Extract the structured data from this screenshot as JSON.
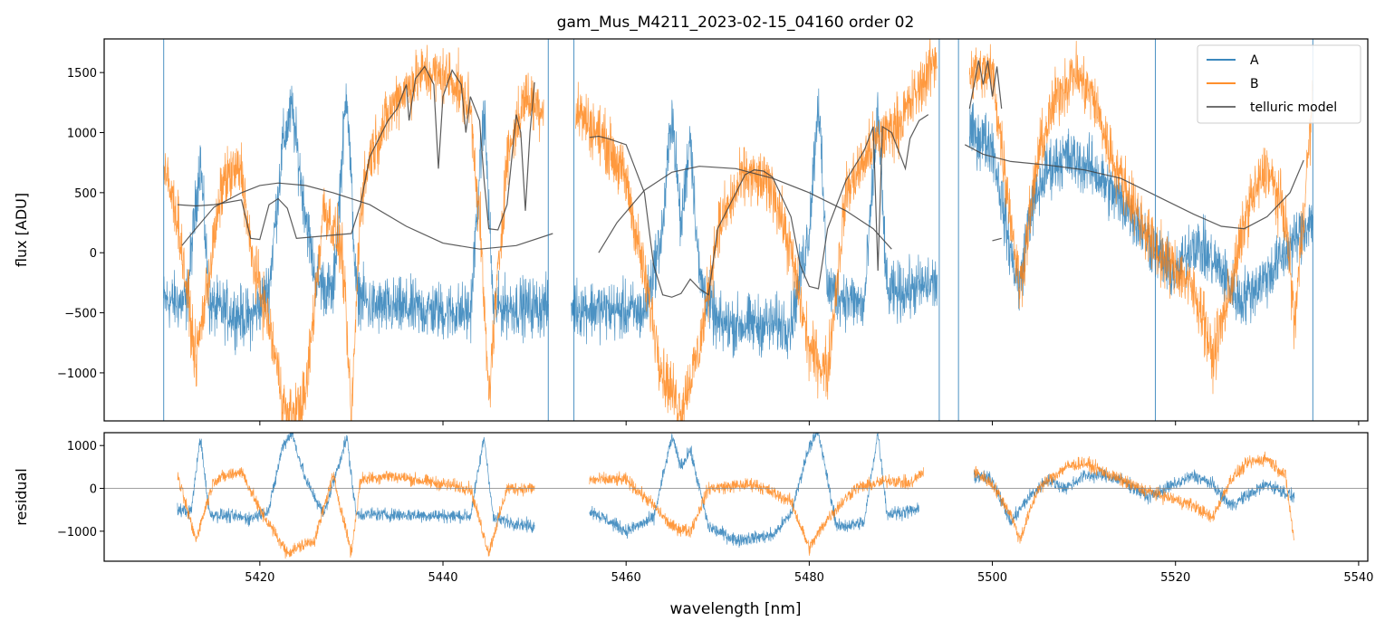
{
  "title": "gam_Mus_M4211_2023-02-15_04160  order 02",
  "colors": {
    "A": "#1f77b4",
    "B": "#ff7f0e",
    "telluric": "#404040",
    "zero": "#808080"
  },
  "chart_data": [
    {
      "panel": "top",
      "type": "line",
      "xlabel": "",
      "ylabel": "flux [ADU]",
      "xlim": [
        5403,
        5541
      ],
      "ylim": [
        -1400,
        1780
      ],
      "yticks": [
        -1000,
        -500,
        0,
        500,
        1000,
        1500
      ],
      "ytick_labels": [
        "−1000",
        "−500",
        "0",
        "500",
        "1000",
        "1500"
      ],
      "legend": {
        "position": "top-right",
        "entries": [
          "A",
          "B",
          "telluric model"
        ]
      },
      "telluric_model_A": {
        "name": "telluric model",
        "segments": [
          [
            [
              5411.5,
              60
            ],
            [
              5413,
              200
            ],
            [
              5415,
              380
            ],
            [
              5418,
              500
            ],
            [
              5420,
              560
            ],
            [
              5422,
              580
            ],
            [
              5425,
              560
            ],
            [
              5428,
              500
            ],
            [
              5432,
              400
            ],
            [
              5436,
              220
            ],
            [
              5440,
              80
            ],
            [
              5444,
              30
            ],
            [
              5448,
              60
            ],
            [
              5452,
              160
            ]
          ],
          [
            [
              5457,
              0
            ],
            [
              5459,
              250
            ],
            [
              5462,
              520
            ],
            [
              5465,
              670
            ],
            [
              5468,
              720
            ],
            [
              5472,
              700
            ],
            [
              5476,
              620
            ],
            [
              5480,
              500
            ],
            [
              5484,
              350
            ],
            [
              5487,
              200
            ],
            [
              5489,
              30
            ]
          ],
          [
            [
              5497,
              900
            ],
            [
              5499,
              820
            ],
            [
              5502,
              760
            ],
            [
              5506,
              730
            ],
            [
              5510,
              690
            ],
            [
              5514,
              620
            ],
            [
              5518,
              470
            ],
            [
              5522,
              320
            ],
            [
              5525,
              220
            ],
            [
              5527.5,
              200
            ],
            [
              5530,
              300
            ],
            [
              5532.5,
              500
            ],
            [
              5534,
              770
            ]
          ]
        ]
      },
      "telluric_model_B": {
        "name": "telluric model",
        "segments": [
          [
            [
              5411,
              400
            ],
            [
              5413,
              390
            ],
            [
              5415,
              400
            ],
            [
              5418,
              440
            ],
            [
              5419,
              120
            ],
            [
              5420,
              110
            ],
            [
              5421,
              400
            ],
            [
              5422,
              450
            ],
            [
              5423,
              370
            ],
            [
              5424,
              120
            ],
            [
              5430,
              160
            ],
            [
              5431,
              400
            ],
            [
              5432,
              800
            ],
            [
              5434,
              1100
            ],
            [
              5435,
              1200
            ],
            [
              5436,
              1400
            ],
            [
              5436.3,
              1100
            ],
            [
              5437,
              1450
            ],
            [
              5438,
              1550
            ],
            [
              5439,
              1400
            ],
            [
              5439.5,
              700
            ],
            [
              5440,
              1300
            ],
            [
              5441,
              1520
            ],
            [
              5442,
              1400
            ],
            [
              5442.5,
              1000
            ],
            [
              5443,
              1300
            ],
            [
              5444,
              1100
            ],
            [
              5444.5,
              600
            ],
            [
              5445,
              200
            ],
            [
              5446,
              190
            ],
            [
              5447,
              400
            ],
            [
              5448,
              1150
            ],
            [
              5448.5,
              1000
            ],
            [
              5449,
              350
            ],
            [
              5449.5,
              1000
            ],
            [
              5450,
              1420
            ]
          ],
          [
            [
              5456,
              960
            ],
            [
              5457,
              970
            ],
            [
              5458,
              950
            ],
            [
              5460,
              900
            ],
            [
              5462,
              500
            ],
            [
              5463,
              -100
            ],
            [
              5464,
              -350
            ],
            [
              5465,
              -370
            ],
            [
              5466,
              -340
            ],
            [
              5467,
              -220
            ],
            [
              5468,
              -300
            ],
            [
              5469,
              -350
            ],
            [
              5470,
              200
            ],
            [
              5472,
              500
            ],
            [
              5473,
              650
            ],
            [
              5474,
              690
            ],
            [
              5475,
              680
            ],
            [
              5476,
              630
            ],
            [
              5478,
              300
            ],
            [
              5479,
              -100
            ],
            [
              5480,
              -280
            ],
            [
              5481,
              -300
            ],
            [
              5482,
              200
            ],
            [
              5484,
              600
            ],
            [
              5486,
              850
            ],
            [
              5487,
              1050
            ],
            [
              5487.5,
              -150
            ],
            [
              5488,
              1050
            ],
            [
              5489,
              1000
            ],
            [
              5490,
              800
            ],
            [
              5490.5,
              700
            ],
            [
              5491,
              950
            ],
            [
              5492,
              1100
            ],
            [
              5493,
              1150
            ]
          ],
          [
            [
              5497.5,
              1200
            ],
            [
              5498.5,
              1600
            ],
            [
              5499,
              1400
            ],
            [
              5499.5,
              1600
            ],
            [
              5500,
              1300
            ],
            [
              5500.5,
              1550
            ],
            [
              5501,
              1200
            ]
          ],
          [
            [
              5500,
              100
            ],
            [
              5501,
              120
            ]
          ]
        ]
      },
      "series": [
        {
          "name": "A",
          "baseline_level_description": "noisy spectrum"
        },
        {
          "name": "B",
          "baseline_level_description": "noisy spectrum"
        }
      ]
    },
    {
      "panel": "bottom",
      "type": "line",
      "xlabel": "wavelength [nm]",
      "ylabel": "residual",
      "xlim": [
        5403,
        5541
      ],
      "ylim": [
        -1700,
        1300
      ],
      "yticks": [
        -1000,
        0,
        1000
      ],
      "ytick_labels": [
        "−1000",
        "0",
        "1000"
      ],
      "xticks": [
        5420,
        5440,
        5460,
        5480,
        5500,
        5520,
        5540
      ],
      "xtick_labels": [
        "5420",
        "5440",
        "5460",
        "5480",
        "5500",
        "5520",
        "5540"
      ]
    }
  ]
}
